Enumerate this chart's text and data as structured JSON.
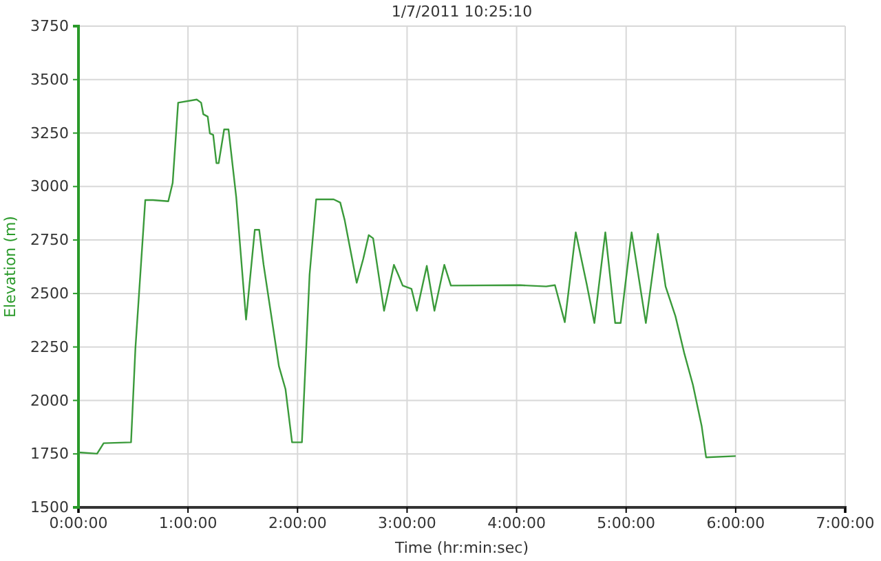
{
  "chart_data": {
    "type": "line",
    "title": "1/7/2011 10:25:10",
    "xlabel": "Time (hr:min:sec)",
    "ylabel": "Elevation (m)",
    "xlim": [
      0,
      7
    ],
    "xticks": [
      {
        "value": 0,
        "label": "0:00:00"
      },
      {
        "value": 1,
        "label": "1:00:00"
      },
      {
        "value": 2,
        "label": "2:00:00"
      },
      {
        "value": 3,
        "label": "3:00:00"
      },
      {
        "value": 4,
        "label": "4:00:00"
      },
      {
        "value": 5,
        "label": "5:00:00"
      },
      {
        "value": 6,
        "label": "6:00:00"
      },
      {
        "value": 7,
        "label": "7:00:00"
      }
    ],
    "ylim": [
      1500,
      3750
    ],
    "yticks": [
      1500,
      1750,
      2000,
      2250,
      2500,
      2750,
      3000,
      3250,
      3500,
      3750
    ],
    "grid": true,
    "line_style": "solid",
    "x": [
      0,
      0.17,
      0.23,
      0.48,
      0.52,
      0.61,
      0.68,
      0.82,
      0.86,
      0.91,
      1.08,
      1.12,
      1.14,
      1.18,
      1.2,
      1.23,
      1.26,
      1.28,
      1.33,
      1.37,
      1.44,
      1.47,
      1.53,
      1.61,
      1.65,
      1.69,
      1.83,
      1.89,
      1.95,
      2.04,
      2.11,
      2.17,
      2.33,
      2.39,
      2.43,
      2.54,
      2.6,
      2.65,
      2.69,
      2.79,
      2.88,
      2.92,
      2.96,
      3.04,
      3.09,
      3.18,
      3.25,
      3.34,
      3.4,
      4.03,
      4.27,
      4.35,
      4.44,
      4.54,
      4.64,
      4.71,
      4.81,
      4.9,
      4.95,
      5.05,
      5.18,
      5.29,
      5.36,
      5.45,
      5.53,
      5.61,
      5.69,
      5.73,
      6
    ],
    "series": [
      {
        "color": "#3a9a3a",
        "values": [
          1757,
          1751,
          1800,
          1804,
          2245,
          2937,
          2937,
          2931,
          3017,
          3392,
          3407,
          3392,
          3338,
          3327,
          3248,
          3242,
          3109,
          3109,
          3267,
          3267,
          2952,
          2760,
          2378,
          2798,
          2798,
          2635,
          2160,
          2053,
          1804,
          1804,
          2588,
          2940,
          2940,
          2925,
          2844,
          2550,
          2662,
          2773,
          2758,
          2419,
          2634,
          2587,
          2537,
          2522,
          2419,
          2629,
          2419,
          2634,
          2537,
          2539,
          2533,
          2539,
          2366,
          2786,
          2544,
          2362,
          2786,
          2362,
          2362,
          2786,
          2362,
          2779,
          2533,
          2394,
          2222,
          2072,
          1879,
          1734,
          1740
        ]
      }
    ]
  }
}
